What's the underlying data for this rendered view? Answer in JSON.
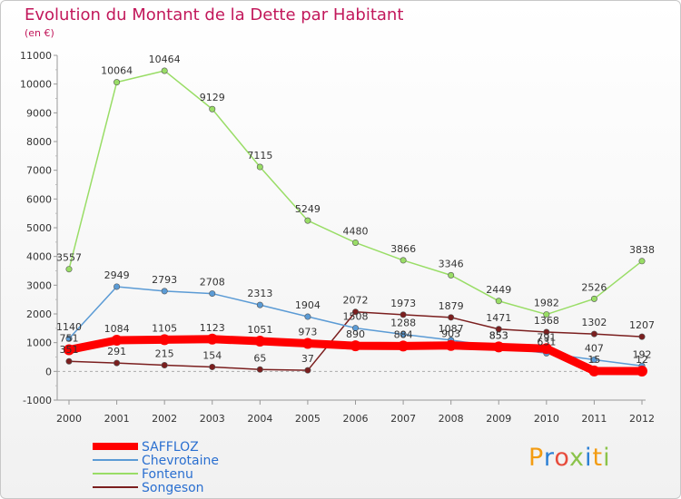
{
  "title": "Evolution du Montant de la Dette par Habitant",
  "subtitle": "(en €)",
  "logo": [
    "P",
    "r",
    "o",
    "x",
    "i",
    "t",
    "i"
  ],
  "chart_data": {
    "type": "line",
    "title": "Evolution du Montant de la Dette par Habitant",
    "ylabel": "(en €)",
    "ylim": [
      -1000,
      11000
    ],
    "yticks": [
      -1000,
      0,
      1000,
      2000,
      3000,
      4000,
      5000,
      6000,
      7000,
      8000,
      9000,
      10000,
      11000
    ],
    "grid": false,
    "legend_position": "bottom-left",
    "x": [
      "2000",
      "2001",
      "2002",
      "2003",
      "2004",
      "2005",
      "2006",
      "2007",
      "2008",
      "2009",
      "2010",
      "2011",
      "2012"
    ],
    "series": [
      {
        "name": "SAFFLOZ",
        "color": "#ff0000",
        "values": [
          751,
          1084,
          1105,
          1123,
          1051,
          973,
          890,
          884,
          903,
          853,
          791,
          15,
          12
        ],
        "labels": [
          "751",
          "1084",
          "1105",
          "1123",
          "1051",
          "973",
          "890",
          "884",
          "903",
          "853",
          "791",
          "15",
          "12"
        ]
      },
      {
        "name": "Chevrotaine",
        "color": "#5b9bd5",
        "values": [
          1140,
          2949,
          2793,
          2708,
          2313,
          1904,
          1508,
          1288,
          1087,
          853,
          631,
          407,
          192
        ],
        "labels": [
          "1140",
          "2949",
          "2793",
          "2708",
          "2313",
          "1904",
          "1508",
          "1288",
          "1087",
          "853",
          "631",
          "407",
          "192"
        ]
      },
      {
        "name": "Fontenu",
        "color": "#99dd66",
        "values": [
          3557,
          10064,
          10464,
          9129,
          7115,
          5249,
          4480,
          3866,
          3346,
          2449,
          1982,
          2526,
          3838
        ],
        "labels": [
          "3557",
          "10064",
          "10464",
          "9129",
          "7115",
          "5249",
          "4480",
          "3866",
          "3346",
          "2449",
          "1982",
          "2526",
          "3838"
        ]
      },
      {
        "name": "Songeson",
        "color": "#7b1f1f",
        "values": [
          351,
          291,
          215,
          154,
          65,
          37,
          2072,
          1973,
          1879,
          1471,
          1368,
          1302,
          1207
        ],
        "labels": [
          "351",
          "291",
          "215",
          "154",
          "65",
          "37",
          "2072",
          "1973",
          "1879",
          "1471",
          "1368",
          "1302",
          "1207"
        ]
      }
    ]
  }
}
